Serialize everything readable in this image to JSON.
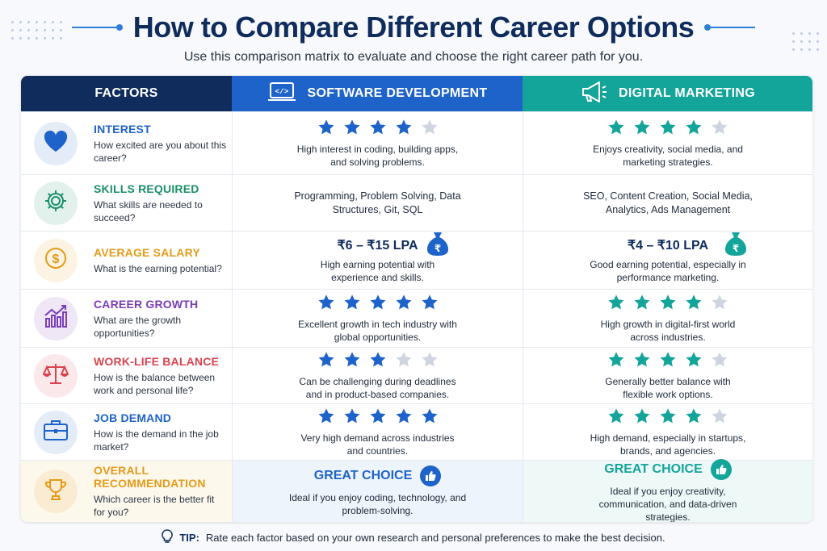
{
  "title": "How to Compare Different Career Options",
  "subtitle": "Use this comparison matrix to evaluate and choose the right career path for you.",
  "headers": {
    "factors": "FACTORS",
    "software": "SOFTWARE DEVELOPMENT",
    "marketing": "DIGITAL MARKETING"
  },
  "colors": {
    "navy": "#0f2c5c",
    "blue": "#1e63c9",
    "teal": "#13a49a",
    "star_empty": "#cfd5de"
  },
  "rows": [
    {
      "name": "INTEREST",
      "question": "How excited are you about this career?",
      "color": "#1e63c9",
      "icon": "heart-icon",
      "software": {
        "stars": 4,
        "text": "High interest in coding, building apps, and solving problems."
      },
      "marketing": {
        "stars": 4,
        "text": "Enjoys creativity, social media, and marketing strategies."
      }
    },
    {
      "name": "SKILLS REQUIRED",
      "question": "What skills are needed to succeed?",
      "color": "#1a8f6a",
      "icon": "gear-icon",
      "software": {
        "text": "Programming, Problem Solving, Data Structures, Git, SQL"
      },
      "marketing": {
        "text": "SEO, Content Creation, Social Media, Analytics, Ads Management"
      }
    },
    {
      "name": "AVERAGE SALARY",
      "question": "What is the earning potential?",
      "color": "#e49b1a",
      "icon": "dollar-icon",
      "software": {
        "salary": "₹6 – ₹15 LPA",
        "text": "High earning potential with experience and skills."
      },
      "marketing": {
        "salary": "₹4 – ₹10 LPA",
        "text": "Good earning potential, especially in performance marketing."
      }
    },
    {
      "name": "CAREER GROWTH",
      "question": "What are the growth opportunities?",
      "color": "#7a3db8",
      "icon": "growth-chart-icon",
      "software": {
        "stars": 5,
        "text": "Excellent growth in tech industry with global opportunities."
      },
      "marketing": {
        "stars": 4,
        "text": "High growth in digital-first world across industries."
      }
    },
    {
      "name": "WORK-LIFE BALANCE",
      "question": "How is the balance between work and personal life?",
      "color": "#d9434f",
      "icon": "scale-icon",
      "software": {
        "stars": 3,
        "text": "Can be challenging during deadlines and in product-based companies."
      },
      "marketing": {
        "stars": 4,
        "text": "Generally better balance with flexible work options."
      }
    },
    {
      "name": "JOB DEMAND",
      "question": "How is the demand in the job market?",
      "color": "#1e63c9",
      "icon": "briefcase-icon",
      "software": {
        "stars": 5,
        "text": "Very high demand across industries and countries."
      },
      "marketing": {
        "stars": 4,
        "text": "High demand, especially in startups, brands, and agencies."
      }
    }
  ],
  "recommendation": {
    "name": "OVERALL RECOMMENDATION",
    "question": "Which career is the better fit for you?",
    "color": "#e49b1a",
    "icon": "trophy-icon",
    "software": {
      "title": "GREAT CHOICE",
      "text": "Ideal if you enjoy coding, technology, and problem-solving."
    },
    "marketing": {
      "title": "GREAT CHOICE",
      "text": "Ideal if you enjoy creativity, communication, and data-driven strategies."
    }
  },
  "tip": {
    "label": "TIP:",
    "text": "Rate each factor based on your own research and personal preferences to make the best decision."
  }
}
